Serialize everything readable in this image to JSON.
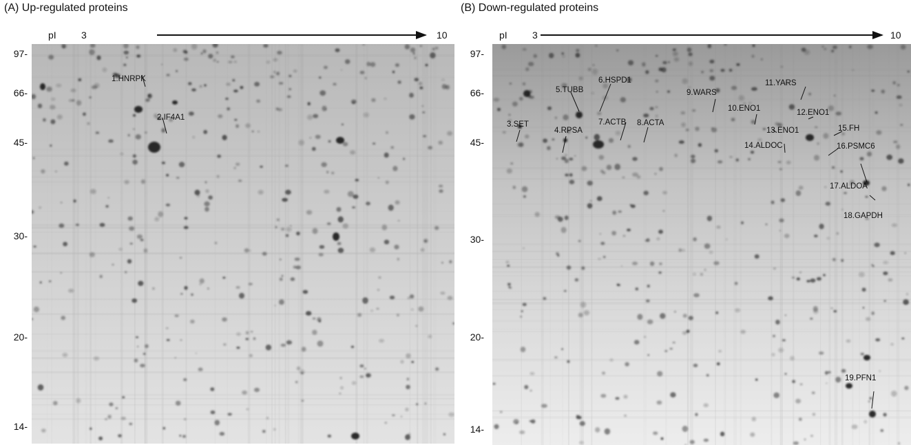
{
  "panels": [
    {
      "title": "(A) Up-regulated proteins",
      "pI_label": "pI",
      "pI_start": "3",
      "pI_end": "10",
      "mw_markers": [
        "97-",
        "66-",
        "45-",
        "30-",
        "20-",
        "14-"
      ],
      "proteins": [
        "1.HNRPK",
        "2.IF4A1"
      ]
    },
    {
      "title": "(B) Down-regulated proteins",
      "pI_label": "pI",
      "pI_start": "3",
      "pI_end": "10",
      "mw_markers": [
        "97-",
        "66-",
        "45-",
        "30-",
        "20-",
        "14-"
      ],
      "proteins": [
        "3.SET",
        "4.RPSA",
        "5.TUBB",
        "6.HSPD1",
        "7.ACTB",
        "8.ACTA",
        "9.WARS",
        "10.ENO1",
        "11.YARS",
        "12.ENO1",
        "13.ENO1",
        "14.ALDOC",
        "15.FH",
        "16.PSMC6",
        "17.ALDOA",
        "18.GAPDH",
        "19.PFN1"
      ]
    }
  ],
  "colors": {
    "gel_background": "#cfcfcf",
    "spot": "#2a2a2a",
    "text": "#111111"
  }
}
